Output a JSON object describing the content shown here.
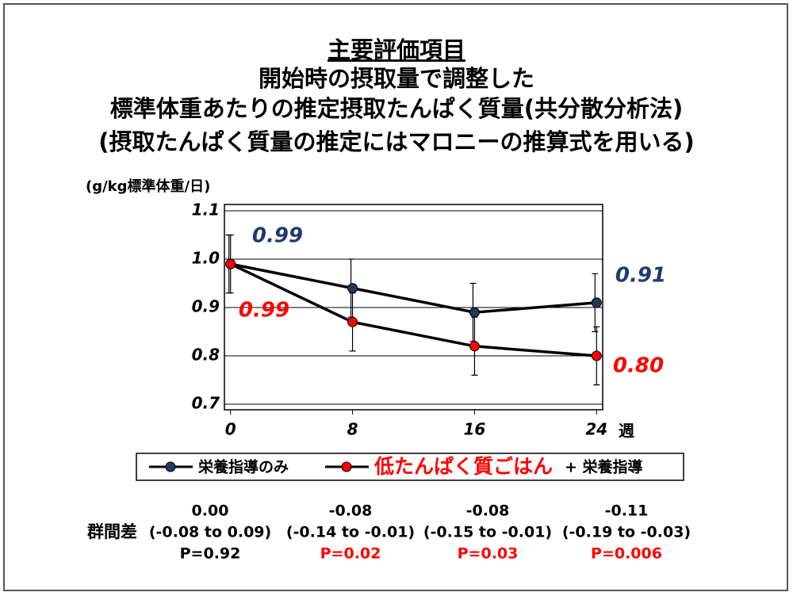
{
  "chart_data": {
    "type": "line",
    "title_lines": [
      "主要評価項目",
      "開始時の摂取量で調整した",
      "標準体重あたりの推定摂取たんぱく質量(共分散分析法)",
      "(摂取たんぱく質量の推定にはマロニーの推算式を用いる)"
    ],
    "y_label": "(g/kg標準体重/日)",
    "x_label": "週",
    "x": [
      0,
      8,
      16,
      24
    ],
    "xlim": [
      -0.4,
      24.4
    ],
    "xticks": [
      0,
      8,
      16,
      24
    ],
    "ylim": [
      0.7,
      1.1
    ],
    "yticks": [
      0.7,
      0.8,
      0.9,
      {
        "value": 1.0,
        "label": "1.0"
      },
      1.1
    ],
    "grid": true,
    "series": [
      {
        "name": "栄養指導のみ",
        "color": "#1f3a5a",
        "label_color": "#1f3a6e",
        "values": [
          0.99,
          0.94,
          0.89,
          0.91
        ],
        "errors": [
          0.06,
          0.06,
          0.06,
          0.06
        ],
        "value_labels": [
          "0.99",
          null,
          null,
          "0.91"
        ]
      },
      {
        "name": "低たんぱく質ごはん",
        "color": "#ff0000",
        "label_color": "#ff0000",
        "values": [
          0.99,
          0.87,
          0.82,
          0.8
        ],
        "errors": [
          0.06,
          0.06,
          0.06,
          0.06
        ],
        "value_labels": [
          "0.99",
          null,
          null,
          "0.80"
        ]
      }
    ],
    "legend_note": "+ 栄養指導",
    "group_difference": {
      "label": "群間差",
      "columns": [
        {
          "diff": "0.00",
          "ci": "(-0.08 to 0.09)",
          "p": "P=0.92",
          "p_color": "#000000"
        },
        {
          "diff": "-0.08",
          "ci": "(-0.14 to -0.01)",
          "p": "P=0.02",
          "p_color": "#ff0000"
        },
        {
          "diff": "-0.08",
          "ci": "(-0.15 to -0.01)",
          "p": "P=0.03",
          "p_color": "#ff0000"
        },
        {
          "diff": "-0.11",
          "ci": "(-0.19 to -0.03)",
          "p": "P=0.006",
          "p_color": "#ff0000"
        }
      ]
    }
  }
}
